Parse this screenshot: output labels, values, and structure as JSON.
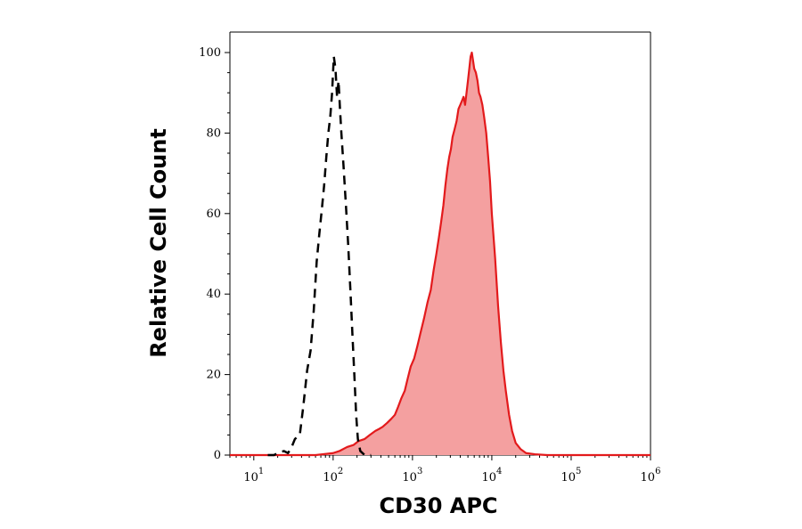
{
  "chart_data": {
    "type": "area",
    "xlabel": "CD30 APC",
    "ylabel": "Relative Cell Count",
    "x_scale": "log",
    "xlim": [
      5,
      1000000
    ],
    "ylim": [
      0,
      105
    ],
    "grid": false,
    "x_ticks": [
      {
        "value": 10,
        "base": "10",
        "exp": "1"
      },
      {
        "value": 100,
        "base": "10",
        "exp": "2"
      },
      {
        "value": 1000,
        "base": "10",
        "exp": "3"
      },
      {
        "value": 10000,
        "base": "10",
        "exp": "4"
      },
      {
        "value": 100000,
        "base": "10",
        "exp": "5"
      },
      {
        "value": 1000000,
        "base": "10",
        "exp": "6"
      }
    ],
    "y_ticks": [
      0,
      20,
      40,
      60,
      80,
      100
    ],
    "series": [
      {
        "style": "dashed",
        "color": "#000000",
        "points": [
          [
            15,
            0
          ],
          [
            18,
            0
          ],
          [
            20,
            0.5
          ],
          [
            22,
            0.8
          ],
          [
            24,
            1.0
          ],
          [
            27,
            0.5
          ],
          [
            30,
            2
          ],
          [
            33,
            4
          ],
          [
            38,
            5
          ],
          [
            42,
            12
          ],
          [
            47,
            21
          ],
          [
            52,
            26
          ],
          [
            57,
            36
          ],
          [
            62,
            48
          ],
          [
            67,
            55
          ],
          [
            72,
            61
          ],
          [
            77,
            67
          ],
          [
            82,
            74
          ],
          [
            87,
            80
          ],
          [
            92,
            84
          ],
          [
            97,
            90
          ],
          [
            102,
            99
          ],
          [
            107,
            96
          ],
          [
            112,
            89
          ],
          [
            117,
            93
          ],
          [
            122,
            86
          ],
          [
            127,
            80
          ],
          [
            135,
            72
          ],
          [
            145,
            62
          ],
          [
            155,
            52
          ],
          [
            165,
            41
          ],
          [
            175,
            30
          ],
          [
            185,
            20
          ],
          [
            195,
            10
          ],
          [
            205,
            4
          ],
          [
            220,
            1
          ],
          [
            250,
            0
          ],
          [
            300,
            0
          ]
        ]
      },
      {
        "style": "filled",
        "color": "#e31a1c",
        "fill": "#f4a0a0",
        "points": [
          [
            5,
            0
          ],
          [
            60,
            0
          ],
          [
            100,
            0.5
          ],
          [
            120,
            1
          ],
          [
            150,
            2
          ],
          [
            180,
            2.5
          ],
          [
            210,
            3.5
          ],
          [
            250,
            4
          ],
          [
            290,
            5
          ],
          [
            340,
            6
          ],
          [
            380,
            6.5
          ],
          [
            420,
            7
          ],
          [
            480,
            8
          ],
          [
            540,
            9
          ],
          [
            600,
            10
          ],
          [
            660,
            12
          ],
          [
            720,
            14
          ],
          [
            800,
            16
          ],
          [
            870,
            19
          ],
          [
            950,
            22
          ],
          [
            1050,
            24
          ],
          [
            1150,
            27
          ],
          [
            1250,
            30
          ],
          [
            1400,
            34
          ],
          [
            1550,
            38
          ],
          [
            1700,
            41
          ],
          [
            1850,
            46
          ],
          [
            2000,
            50
          ],
          [
            2150,
            54
          ],
          [
            2300,
            58
          ],
          [
            2450,
            62
          ],
          [
            2600,
            67
          ],
          [
            2750,
            71
          ],
          [
            2900,
            74
          ],
          [
            3050,
            76
          ],
          [
            3200,
            79
          ],
          [
            3400,
            81
          ],
          [
            3600,
            83
          ],
          [
            3800,
            86
          ],
          [
            4000,
            87
          ],
          [
            4200,
            88
          ],
          [
            4400,
            89
          ],
          [
            4600,
            87
          ],
          [
            4800,
            90
          ],
          [
            5000,
            93
          ],
          [
            5200,
            96
          ],
          [
            5400,
            99
          ],
          [
            5600,
            100
          ],
          [
            5800,
            98
          ],
          [
            6000,
            96
          ],
          [
            6300,
            95
          ],
          [
            6600,
            93
          ],
          [
            6900,
            90
          ],
          [
            7200,
            89
          ],
          [
            7600,
            87
          ],
          [
            8000,
            84
          ],
          [
            8500,
            80
          ],
          [
            9000,
            74
          ],
          [
            9500,
            68
          ],
          [
            10000,
            60
          ],
          [
            11000,
            49
          ],
          [
            12000,
            37
          ],
          [
            13000,
            28
          ],
          [
            14000,
            21
          ],
          [
            15000,
            16
          ],
          [
            16500,
            10
          ],
          [
            18000,
            6
          ],
          [
            20000,
            3
          ],
          [
            23000,
            1.5
          ],
          [
            27000,
            0.5
          ],
          [
            35000,
            0.2
          ],
          [
            50000,
            0
          ],
          [
            1000000,
            0
          ]
        ]
      }
    ]
  }
}
